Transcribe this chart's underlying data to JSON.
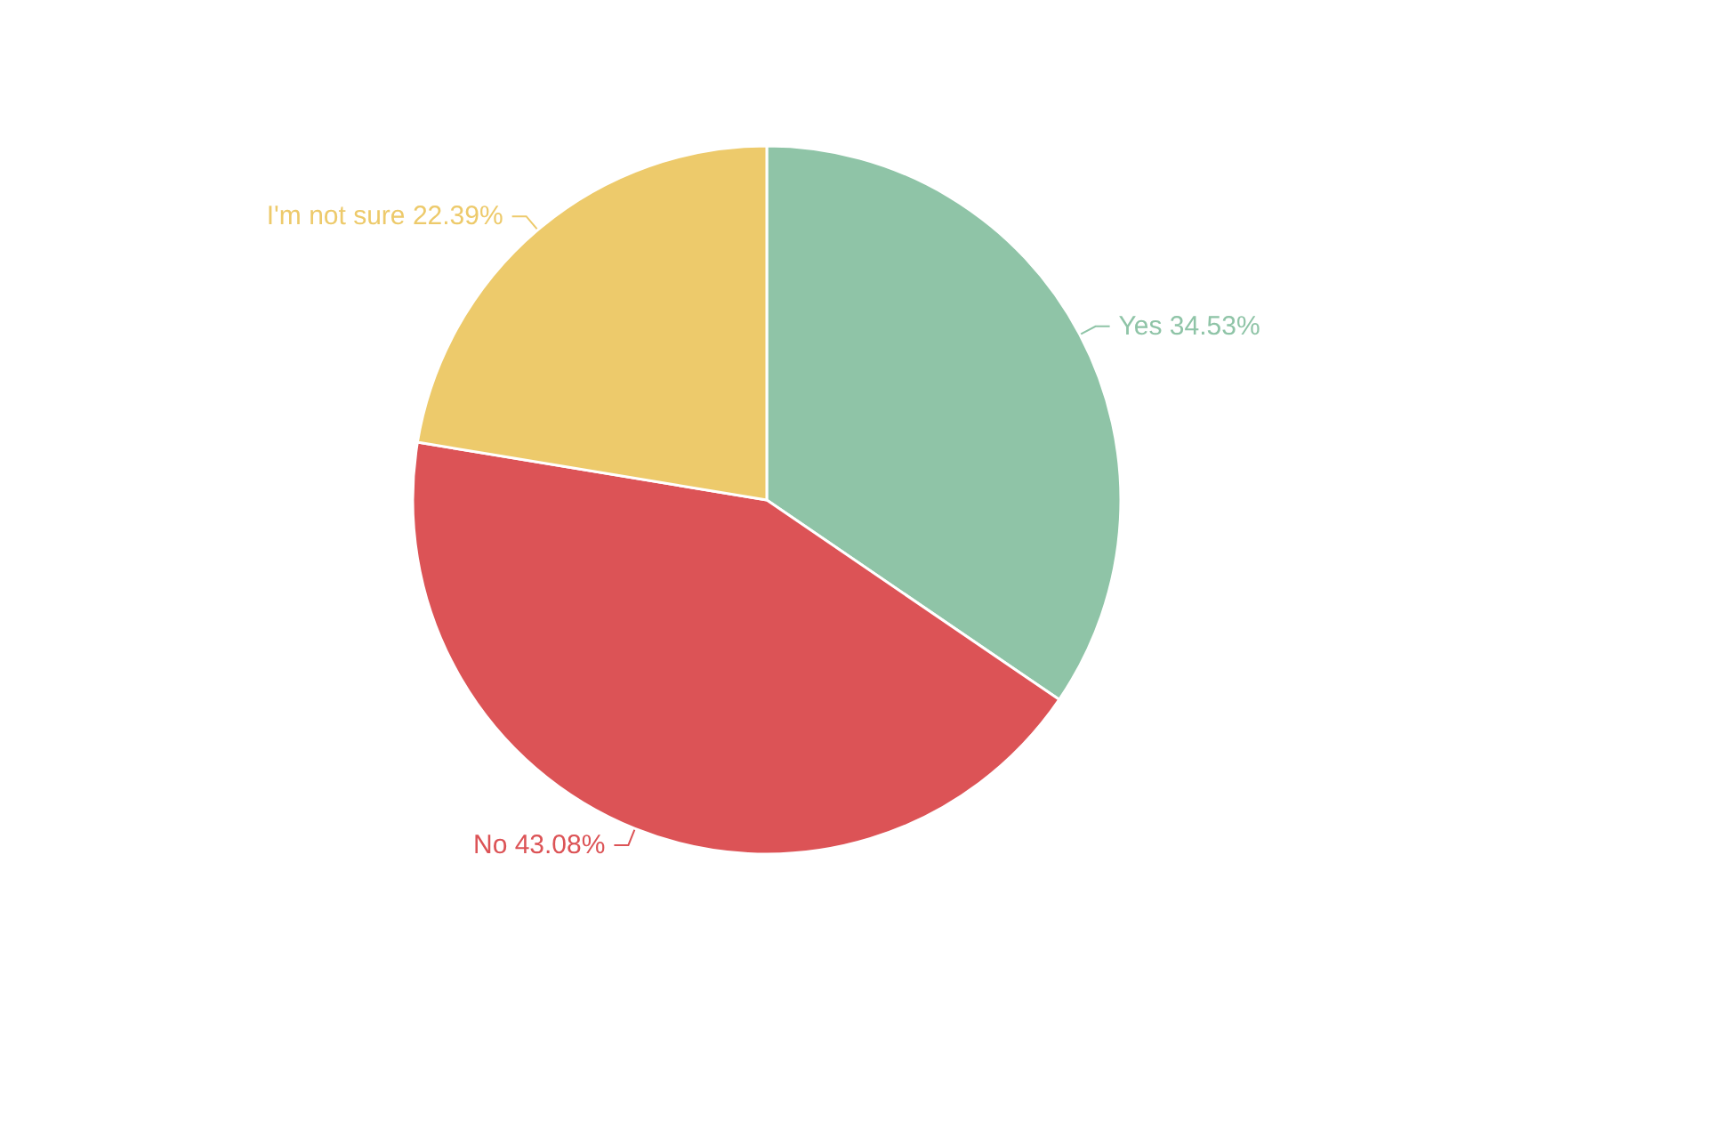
{
  "chart_data": {
    "type": "pie",
    "categories": [
      "Yes",
      "No",
      "I'm not sure"
    ],
    "values": [
      34.53,
      43.08,
      22.39
    ],
    "value_labels": [
      "34.53%",
      "43.08%",
      "22.39%"
    ],
    "colors": [
      "#8fc4a7",
      "#dc5356",
      "#edca6b"
    ],
    "legend": false
  }
}
